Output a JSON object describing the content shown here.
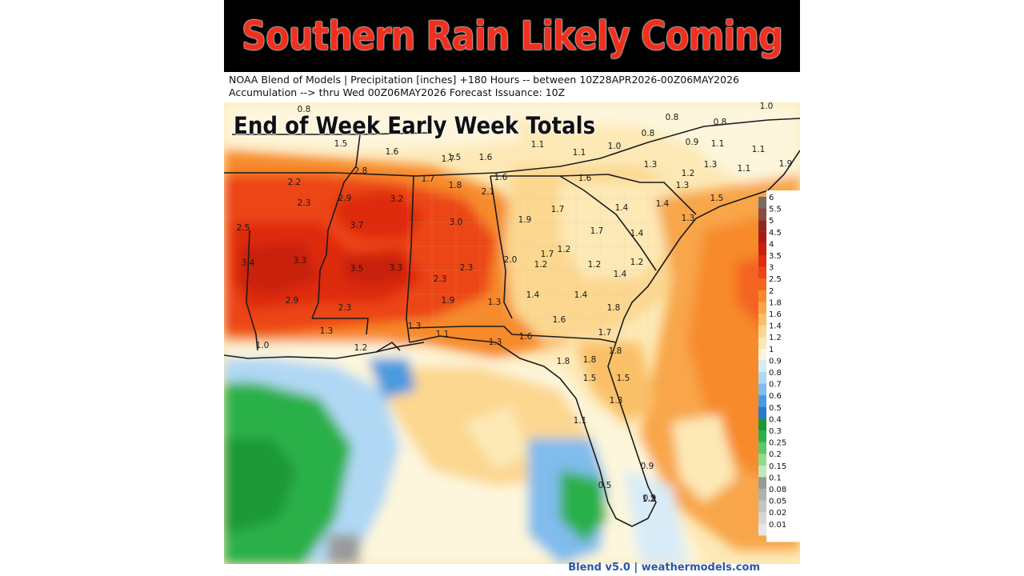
{
  "banner": {
    "title": "Southern Rain Likely Coming"
  },
  "header": {
    "line1": "NOAA Blend of Models | Precipitation [inches] +180 Hours -- between 10Z28APR2026-00Z06MAY2026",
    "line2": "Accumulation --> thru Wed 00Z06MAY2026   Forecast Issuance: 10Z"
  },
  "overlay_title": "End of Week Early Week Totals",
  "footer": "Blend v5.0 | weathermodels.com",
  "legend": [
    {
      "label": "6",
      "color": "#7a6a68"
    },
    {
      "label": "5.5",
      "color": "#8a4a44"
    },
    {
      "label": "5",
      "color": "#8e2a22"
    },
    {
      "label": "4.5",
      "color": "#a81e14"
    },
    {
      "label": "4",
      "color": "#c8200e"
    },
    {
      "label": "3.5",
      "color": "#de2c10"
    },
    {
      "label": "3",
      "color": "#ec4418"
    },
    {
      "label": "2.5",
      "color": "#f56420"
    },
    {
      "label": "2",
      "color": "#f78a2c"
    },
    {
      "label": "1.8",
      "color": "#f8a648"
    },
    {
      "label": "1.6",
      "color": "#fac068"
    },
    {
      "label": "1.4",
      "color": "#fcd790"
    },
    {
      "label": "1.2",
      "color": "#fde9b6"
    },
    {
      "label": "1",
      "color": "#fdf6dc"
    },
    {
      "label": "0.9",
      "color": "#d8ecf8"
    },
    {
      "label": "0.8",
      "color": "#b0d8f4"
    },
    {
      "label": "0.7",
      "color": "#80bcec"
    },
    {
      "label": "0.6",
      "color": "#4a9ae0"
    },
    {
      "label": "0.5",
      "color": "#2a78cc"
    },
    {
      "label": "0.4",
      "color": "#1a9838"
    },
    {
      "label": "0.3",
      "color": "#2cb04a"
    },
    {
      "label": "0.25",
      "color": "#5cc86a"
    },
    {
      "label": "0.2",
      "color": "#8edc8e"
    },
    {
      "label": "0.15",
      "color": "#bceab8"
    },
    {
      "label": "0.1",
      "color": "#9a9a9a"
    },
    {
      "label": "0.08",
      "color": "#b0b0b0"
    },
    {
      "label": "0.05",
      "color": "#c4c4c4"
    },
    {
      "label": "0.02",
      "color": "#d6d6d6"
    },
    {
      "label": "0.01",
      "color": "#e6e6e6"
    }
  ],
  "point_values": [
    "0.8",
    "0.8",
    "0.8",
    "1.0",
    "1.5",
    "1.6",
    "1.7",
    "1.5",
    "1.6",
    "1.1",
    "1.1",
    "1.0",
    "0.8",
    "0.9",
    "1.1",
    "1.1",
    "1.1",
    "1.3",
    "1.3",
    "1.2",
    "1.3",
    "1.9",
    "2.2",
    "2.3",
    "2.8",
    "2.9",
    "3.2",
    "1.7",
    "1.8",
    "2.1",
    "1.6",
    "1.6",
    "1.4",
    "1.4",
    "1.5",
    "1.3",
    "2.5",
    "3.7",
    "3.0",
    "1.9",
    "1.7",
    "1.7",
    "1.4",
    "1.2",
    "1.2",
    "3.4",
    "3.3",
    "3.5",
    "3.3",
    "2.3",
    "2.0",
    "1.7",
    "1.2",
    "1.2",
    "1.4",
    "2.3",
    "1.9",
    "1.3",
    "1.4",
    "1.4",
    "2.9",
    "2.3",
    "1.8",
    "1.6",
    "1.3",
    "1.3",
    "1.1",
    "1.7",
    "1.8",
    "1.0",
    "1.2",
    "1.3",
    "1.6",
    "1.8",
    "1.8",
    "1.5",
    "1.5",
    "1.3",
    "1.1",
    "0.9",
    "0.5",
    "1.2",
    "0.9"
  ]
}
